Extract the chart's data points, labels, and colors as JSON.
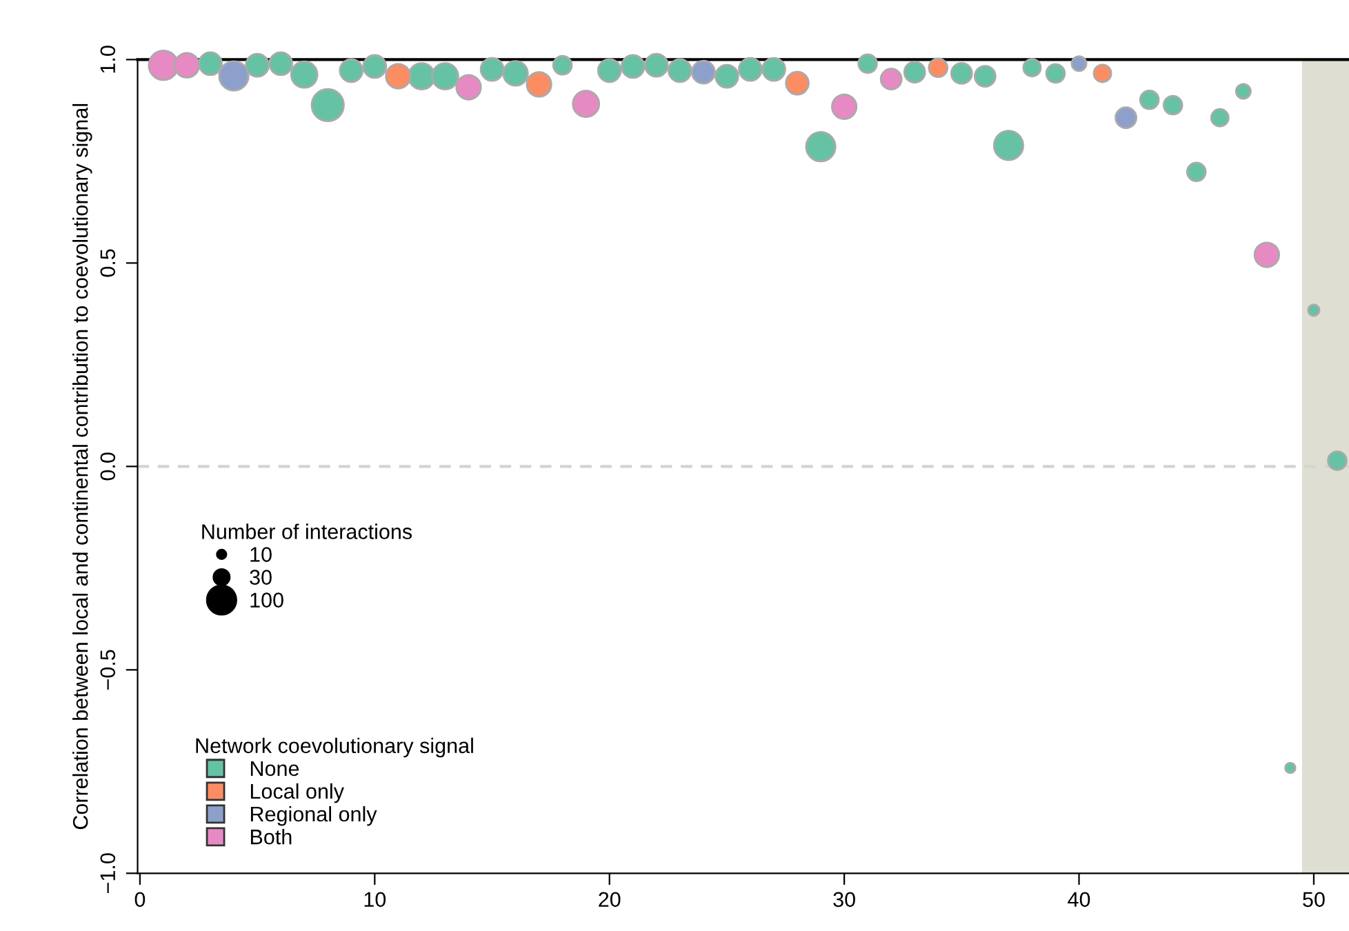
{
  "chart_data": {
    "type": "bubble",
    "ylabel": "Correlation between local and continental contribution to coevolutionary signal",
    "legend_title": "Network coevolutionary signal",
    "annotations": [
      "Number of interactions"
    ],
    "xlim": [
      -0.1,
      51.5
    ],
    "ylim": [
      -1.0,
      1.0
    ],
    "xticks": [
      0,
      10,
      20,
      30,
      40,
      50
    ],
    "yticks": [
      {
        "value": -1.0,
        "label": "−1.0"
      },
      {
        "value": -0.5,
        "label": "−0.5"
      },
      {
        "value": 0.0,
        "label": "0.0"
      },
      {
        "value": 0.5,
        "label": "0.5"
      },
      {
        "value": 1.0,
        "label": "1.0"
      }
    ],
    "size_legend": [
      10,
      30,
      100
    ],
    "legend": "bottom left",
    "grid": false,
    "marker": "circle",
    "ref_lines": [
      {
        "axis": "y",
        "value": 0,
        "label": null,
        "color": "#d3d3d3",
        "line_style": "dashed"
      }
    ],
    "bands": [
      {
        "axis": "x",
        "from": 49.5,
        "to": 51.5,
        "label": null,
        "color": "#dedfd2"
      }
    ],
    "series": [
      {
        "name": "None",
        "color": "#66c2a5",
        "x": [
          3,
          5,
          6,
          7,
          8,
          9,
          10,
          12,
          13,
          15,
          16,
          18,
          20,
          21,
          22,
          23,
          25,
          26,
          27,
          29,
          31,
          33,
          35,
          36,
          37,
          38,
          39,
          43,
          44,
          45,
          46,
          47,
          49,
          50,
          51
        ],
        "values": [
          0.99,
          0.986,
          0.99,
          0.963,
          0.888,
          0.973,
          0.983,
          0.959,
          0.959,
          0.976,
          0.966,
          0.986,
          0.973,
          0.983,
          0.986,
          0.973,
          0.959,
          0.976,
          0.976,
          0.786,
          0.99,
          0.969,
          0.966,
          0.959,
          0.789,
          0.98,
          0.966,
          0.901,
          0.888,
          0.724,
          0.857,
          0.922,
          -0.741,
          0.384,
          0.014
        ],
        "sizes": [
          60,
          60,
          60,
          80,
          120,
          60,
          60,
          80,
          80,
          60,
          70,
          40,
          60,
          60,
          60,
          60,
          60,
          60,
          60,
          100,
          40,
          50,
          50,
          50,
          100,
          35,
          40,
          40,
          40,
          40,
          35,
          25,
          12,
          15,
          40
        ]
      },
      {
        "name": "Local only",
        "color": "#fc8d62",
        "x": [
          11,
          17,
          28,
          34,
          41
        ],
        "values": [
          0.959,
          0.939,
          0.942,
          0.98,
          0.966
        ],
        "sizes": [
          70,
          70,
          60,
          40,
          35
        ]
      },
      {
        "name": "Regional only",
        "color": "#8da0cb",
        "x": [
          4,
          24,
          40,
          42
        ],
        "values": [
          0.96,
          0.969,
          0.99,
          0.857
        ],
        "sizes": [
          100,
          60,
          25,
          50
        ]
      },
      {
        "name": "Both",
        "color": "#e78ac3",
        "x": [
          1,
          2,
          14,
          19,
          30,
          32,
          48
        ],
        "values": [
          0.986,
          0.986,
          0.932,
          0.891,
          0.884,
          0.952,
          0.52
        ],
        "sizes": [
          100,
          70,
          70,
          80,
          70,
          50,
          70
        ]
      }
    ]
  }
}
